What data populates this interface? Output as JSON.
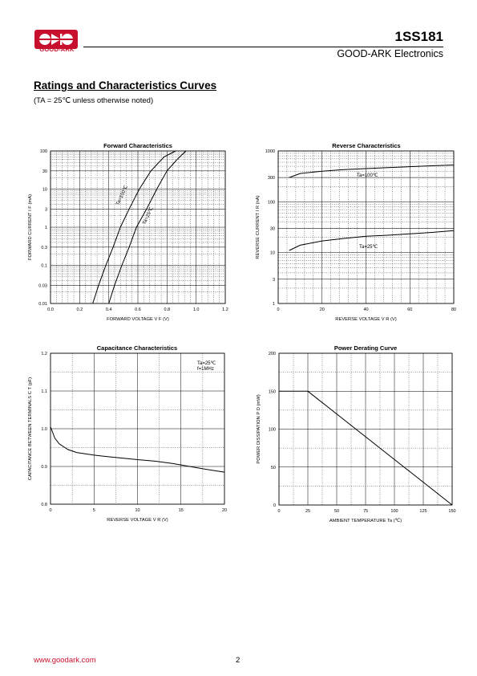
{
  "header": {
    "brand": "GOOD-ARK",
    "brand_color": "#c8102e",
    "part_number": "1SS181",
    "company": "GOOD-ARK Electronics"
  },
  "section": {
    "title": "Ratings and Characteristics Curves",
    "note": "(TA = 25℃ unless otherwise noted)"
  },
  "footer": {
    "url": "www.goodark.com",
    "page": "2"
  },
  "chart_data": [
    {
      "id": "forward",
      "type": "line",
      "title": "Forward Characteristics",
      "xlabel": "FORWARD VOLTAGE V F (V)",
      "ylabel": "FORWARD CURRENT I F (mA)",
      "xlim": [
        0,
        1.2
      ],
      "ylim": [
        0.01,
        100
      ],
      "yscale": "log",
      "xticks": [
        "0.0",
        "0.2",
        "0.4",
        "0.6",
        "0.8",
        "1.0",
        "1.2"
      ],
      "yticks": [
        "0.01",
        "0.03",
        "0.1",
        "0.3",
        "1",
        "3",
        "10",
        "30",
        "100"
      ],
      "series": [
        {
          "name": "Ta=100℃",
          "x": [
            0.29,
            0.33,
            0.38,
            0.43,
            0.48,
            0.54,
            0.61,
            0.69,
            0.78,
            0.86
          ],
          "y": [
            0.01,
            0.03,
            0.1,
            0.3,
            1,
            3,
            10,
            30,
            70,
            100
          ]
        },
        {
          "name": "Ta=25℃",
          "x": [
            0.4,
            0.44,
            0.49,
            0.54,
            0.59,
            0.66,
            0.73,
            0.8,
            0.87,
            0.93
          ],
          "y": [
            0.01,
            0.03,
            0.1,
            0.3,
            1,
            3,
            10,
            30,
            60,
            100
          ]
        }
      ]
    },
    {
      "id": "reverse",
      "type": "line",
      "title": "Reverse    Characteristics",
      "xlabel": "REVERSE VOLTAGE V R (V)",
      "ylabel": "REVERSE CURRENT I R (nA)",
      "xlim": [
        0,
        80
      ],
      "ylim": [
        1,
        1000
      ],
      "yscale": "log",
      "xticks": [
        "0",
        "20",
        "40",
        "60",
        "80"
      ],
      "yticks": [
        "1",
        "3",
        "10",
        "30",
        "100",
        "300",
        "1000"
      ],
      "series": [
        {
          "name": "Ta=100℃",
          "x": [
            5,
            10,
            20,
            30,
            40,
            50,
            60,
            70,
            80
          ],
          "y": [
            300,
            360,
            400,
            430,
            450,
            470,
            490,
            510,
            530
          ]
        },
        {
          "name": "Ta=25℃",
          "x": [
            5,
            10,
            20,
            30,
            40,
            50,
            60,
            70,
            80
          ],
          "y": [
            11,
            14,
            17,
            19,
            21,
            22,
            23.5,
            25,
            27
          ]
        }
      ]
    },
    {
      "id": "capacitance",
      "type": "line",
      "title": "Capacitance Characteristics",
      "xlabel": "REVERSE VOLTAGE V R (V)",
      "ylabel": "CAPACITANCE BETWEEN TERMINALS C T (pF)",
      "xlim": [
        0,
        20
      ],
      "ylim": [
        0.8,
        1.2
      ],
      "xticks": [
        "0",
        "5",
        "10",
        "15",
        "20"
      ],
      "yticks": [
        "0.8",
        "0.9",
        "1.0",
        "1.1",
        "1.2"
      ],
      "annotation": [
        "Ta=25℃",
        "f=1MHz"
      ],
      "series": [
        {
          "name": "Ta=25℃",
          "x": [
            0,
            0.5,
            1,
            2,
            3,
            5,
            7,
            10,
            12,
            14,
            16,
            18,
            20
          ],
          "y": [
            1.005,
            0.975,
            0.96,
            0.945,
            0.937,
            0.93,
            0.925,
            0.918,
            0.914,
            0.908,
            0.9,
            0.892,
            0.885
          ]
        }
      ]
    },
    {
      "id": "derating",
      "type": "line",
      "title": "Power Derating Curve",
      "xlabel": "AMBIENT TEMPERATURE Ta (℃)",
      "ylabel": "POWER DISSIPATION P D (mW)",
      "xlim": [
        0,
        150
      ],
      "ylim": [
        0,
        200
      ],
      "xticks": [
        "0",
        "25",
        "50",
        "75",
        "100",
        "125",
        "150"
      ],
      "yticks": [
        "0",
        "50",
        "100",
        "150",
        "200"
      ],
      "series": [
        {
          "x": [
            0,
            25,
            150
          ],
          "y": [
            150,
            150,
            0
          ]
        }
      ]
    }
  ]
}
